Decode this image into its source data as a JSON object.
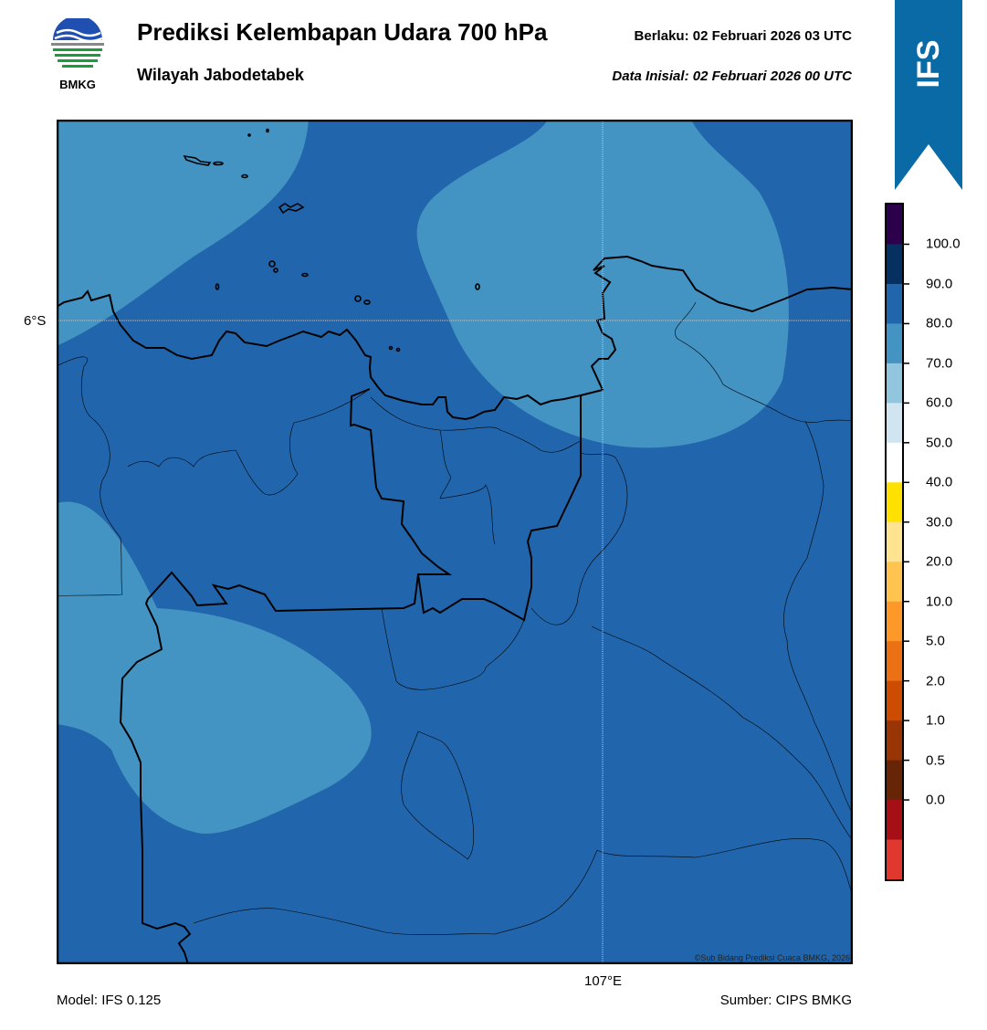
{
  "header": {
    "title": "Prediksi Kelembapan Udara 700 hPa",
    "subtitle": "Wilayah Jabodetabek",
    "valid_time": "Berlaku:  02 Februari 2026 03 UTC",
    "initial_data": "Data Inisial:  02 Februari 2026 00 UTC"
  },
  "logo": {
    "text": "BMKG",
    "icon": "bmkg-logo"
  },
  "ribbon": {
    "text": "IFS",
    "color": "#0a6aa6"
  },
  "map": {
    "lat_label": "6°S",
    "lon_label": "107°E",
    "copyright": "©Sub Bidang Prediksi Cuaca BMKG, 2026",
    "field_colors": {
      "base": "#2166ac",
      "moist_patch": "#4393c3"
    }
  },
  "footer": {
    "model": "Model: IFS 0.125",
    "source": "Sumber: CIPS BMKG"
  },
  "colorbar": {
    "labels": [
      "100.0",
      "90.0",
      "80.0",
      "70.0",
      "60.0",
      "50.0",
      "40.0",
      "30.0",
      "20.0",
      "10.0",
      "5.0",
      "2.0",
      "1.0",
      "0.5",
      "0.0"
    ],
    "colors_top_to_bottom": [
      "#2d004b",
      "#053061",
      "#2166ac",
      "#4393c3",
      "#92c5de",
      "#d1e5f0",
      "#ffffff",
      "#ffe100",
      "#fee391",
      "#fec44f",
      "#fe9929",
      "#ec7014",
      "#cc4c02",
      "#993404",
      "#662506",
      "#a50f15",
      "#e0382e"
    ]
  }
}
